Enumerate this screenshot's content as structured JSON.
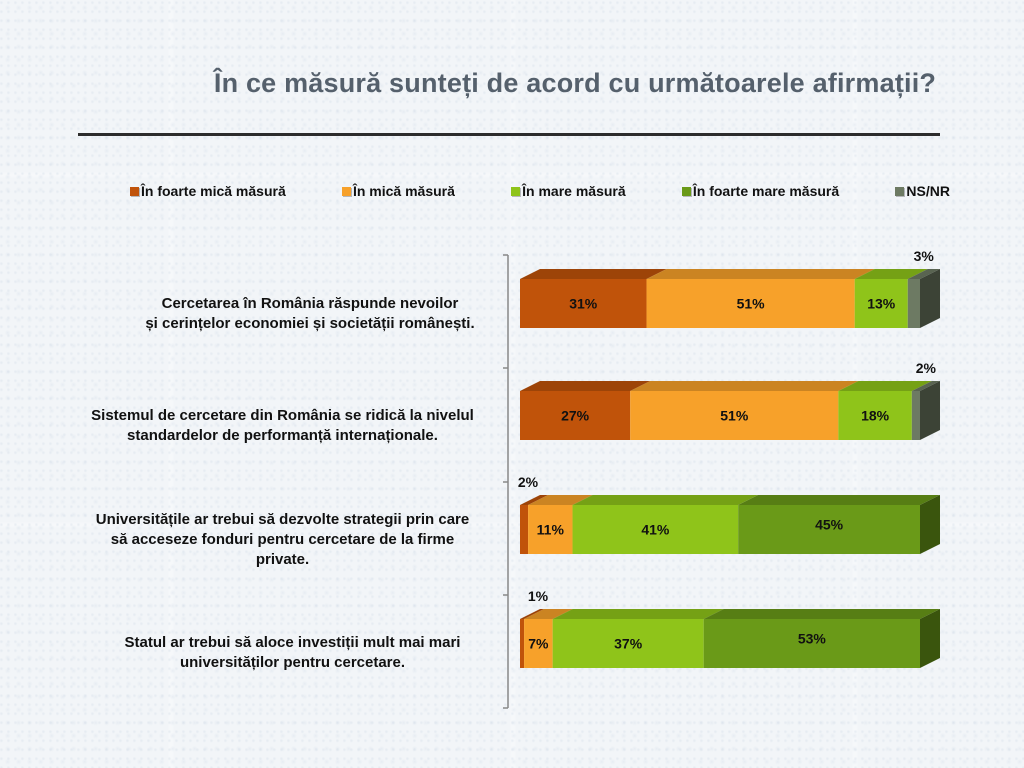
{
  "title": "În ce măsură sunteți de acord cu următoarele afirmații?",
  "chart_data": {
    "type": "bar",
    "orientation": "horizontal",
    "stacked": true,
    "series": [
      {
        "name": "În foarte mică măsură",
        "color": "#c0530a",
        "values": [
          31,
          27,
          2,
          1
        ]
      },
      {
        "name": "În mică măsură",
        "color": "#f7a12a",
        "values": [
          51,
          51,
          11,
          7
        ]
      },
      {
        "name": "În mare măsură",
        "color": "#8fc41a",
        "values": [
          13,
          18,
          41,
          37
        ]
      },
      {
        "name": "În foarte mare măsură",
        "color": "#6a9a18",
        "values": [
          0,
          0,
          45,
          53
        ]
      },
      {
        "name": "NS/NR",
        "color": "#6d7a63",
        "values": [
          3,
          2,
          0,
          0
        ]
      }
    ],
    "categories": [
      "Cercetarea în România răspunde nevoilor\nși cerințelor economiei și societății românești.",
      "Sistemul de cercetare din România se ridică la nivelul\nstandardelor de performanță internaționale.",
      "Universitățile ar trebui să dezvolte strategii prin care\nsă acceseze fonduri pentru cercetare de la firme\nprivate.",
      "Statul ar trebui să aloce investiții mult mai mari\nuniversităților pentru cercetare."
    ],
    "data_labels": [
      [
        "31%",
        "51%",
        "13%",
        "",
        "3%"
      ],
      [
        "27%",
        "51%",
        "18%",
        "",
        "2%"
      ],
      [
        "2%",
        "11%",
        "41%",
        "45%",
        ""
      ],
      [
        "1%",
        "7%",
        "37%",
        "53%",
        ""
      ]
    ],
    "legend_position": "top",
    "grid": false,
    "xlim": [
      0,
      100
    ]
  }
}
